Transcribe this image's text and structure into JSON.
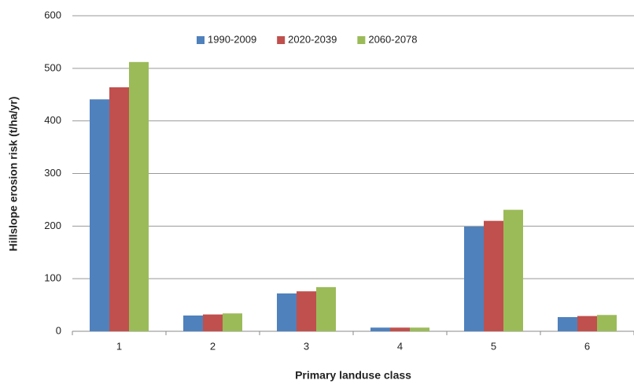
{
  "chart_data": {
    "type": "bar",
    "x_label": "Primary landuse class",
    "y_label": "Hillslope erosion risk (t/ha/yr)",
    "categories": [
      "1",
      "2",
      "3",
      "4",
      "5",
      "6"
    ],
    "series": [
      {
        "name": "1990-2009",
        "color": "#4f81bd",
        "values": [
          441,
          30,
          72,
          7,
          199,
          27
        ]
      },
      {
        "name": "2020-2039",
        "color": "#c0504d",
        "values": [
          464,
          32,
          76,
          7,
          210,
          29
        ]
      },
      {
        "name": "2060-2078",
        "color": "#9bbb59",
        "values": [
          512,
          34,
          84,
          7,
          231,
          31
        ]
      }
    ],
    "ylim": [
      0,
      600
    ],
    "yticks": [
      0,
      100,
      200,
      300,
      400,
      500,
      600
    ],
    "grid": true,
    "legend": "top"
  }
}
